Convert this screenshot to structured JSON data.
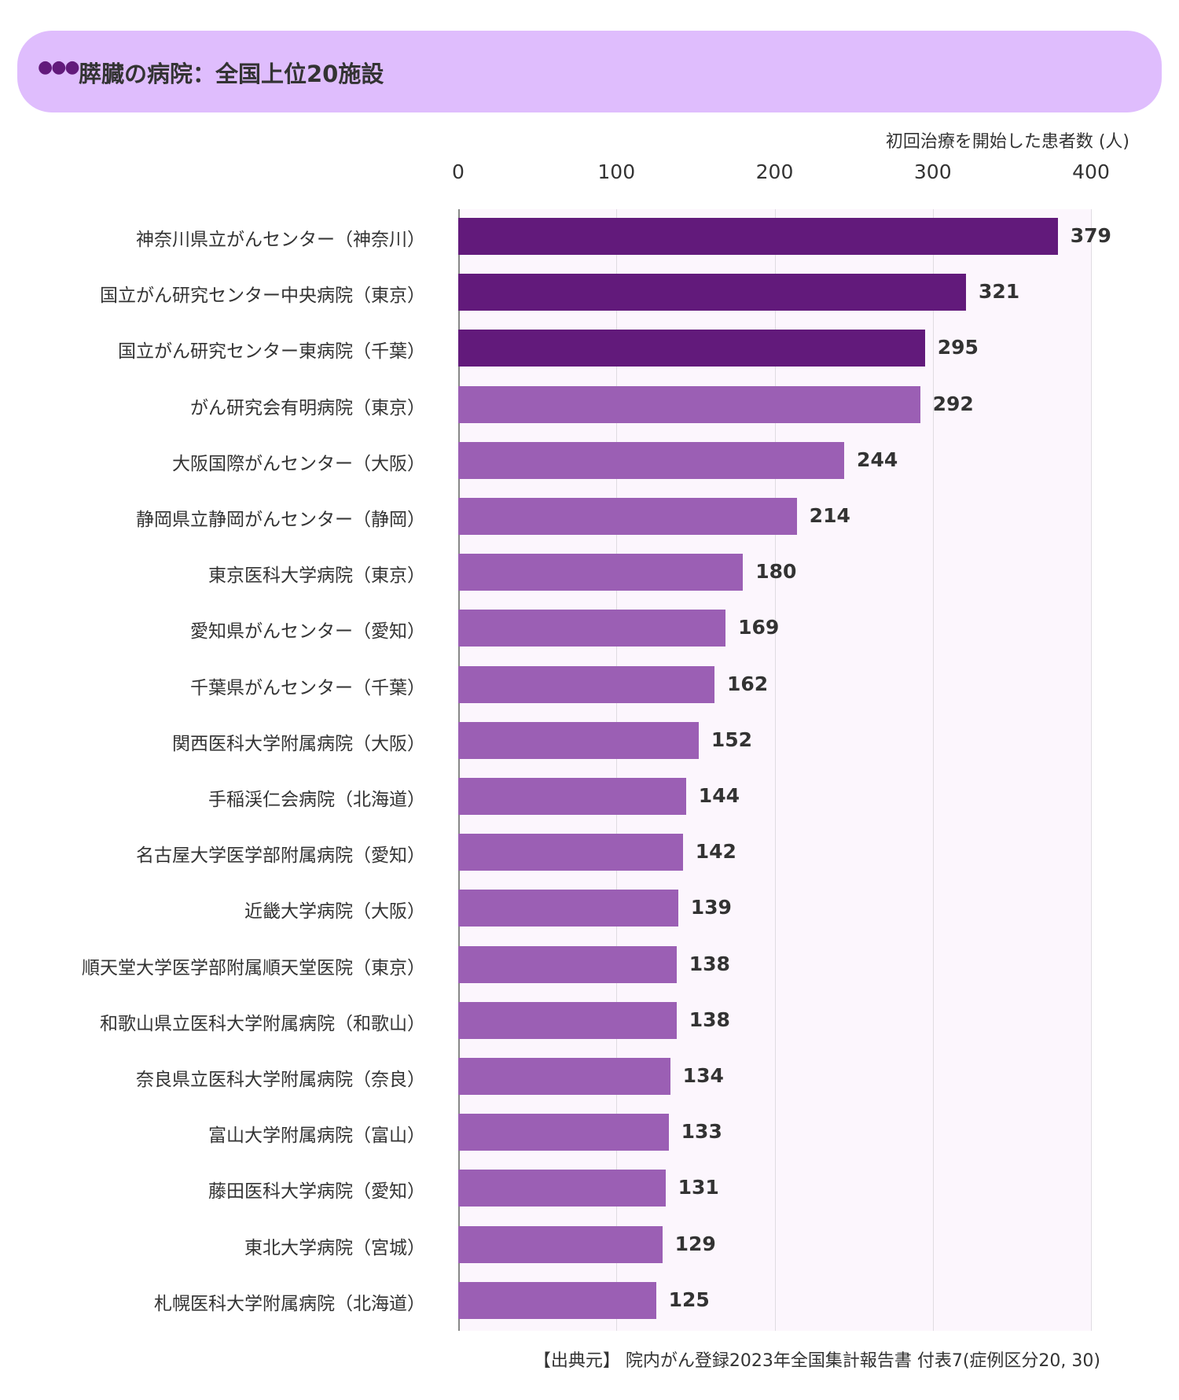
{
  "header": {
    "menu_icon": "ellipsis-icon",
    "title": "膵臓の病院：全国上位20施設"
  },
  "source": "【出典元】 院内がん登録2023年全国集計報告書 付表7(症例区分20, 30)",
  "colors": {
    "highlight": "#621a7b",
    "normal": "#9b5fb4",
    "plot_bg": "#fcf6fd",
    "header_bg": "#dfbdfd"
  },
  "chart_data": {
    "type": "bar",
    "orientation": "horizontal",
    "title": "膵臓の病院：全国上位20施設",
    "xlabel": "初回治療を開始した患者数 (人)",
    "ylabel": "",
    "xlim": [
      0,
      400
    ],
    "xticks": [
      "0",
      "100",
      "200",
      "300",
      "400"
    ],
    "grid": true,
    "highlight_top": 3,
    "categories": [
      "神奈川県立がんセンター（神奈川）",
      "国立がん研究センター中央病院（東京）",
      "国立がん研究センター東病院（千葉）",
      "がん研究会有明病院（東京）",
      "大阪国際がんセンター（大阪）",
      "静岡県立静岡がんセンター（静岡）",
      "東京医科大学病院（東京）",
      "愛知県がんセンター（愛知）",
      "千葉県がんセンター（千葉）",
      "関西医科大学附属病院（大阪）",
      "手稲渓仁会病院（北海道）",
      "名古屋大学医学部附属病院（愛知）",
      "近畿大学病院（大阪）",
      "順天堂大学医学部附属順天堂医院（東京）",
      "和歌山県立医科大学附属病院（和歌山）",
      "奈良県立医科大学附属病院（奈良）",
      "富山大学附属病院（富山）",
      "藤田医科大学病院（愛知）",
      "東北大学病院（宮城）",
      "札幌医科大学附属病院（北海道）"
    ],
    "values": [
      379,
      321,
      295,
      292,
      244,
      214,
      180,
      169,
      162,
      152,
      144,
      142,
      139,
      138,
      138,
      134,
      133,
      131,
      129,
      125
    ]
  }
}
